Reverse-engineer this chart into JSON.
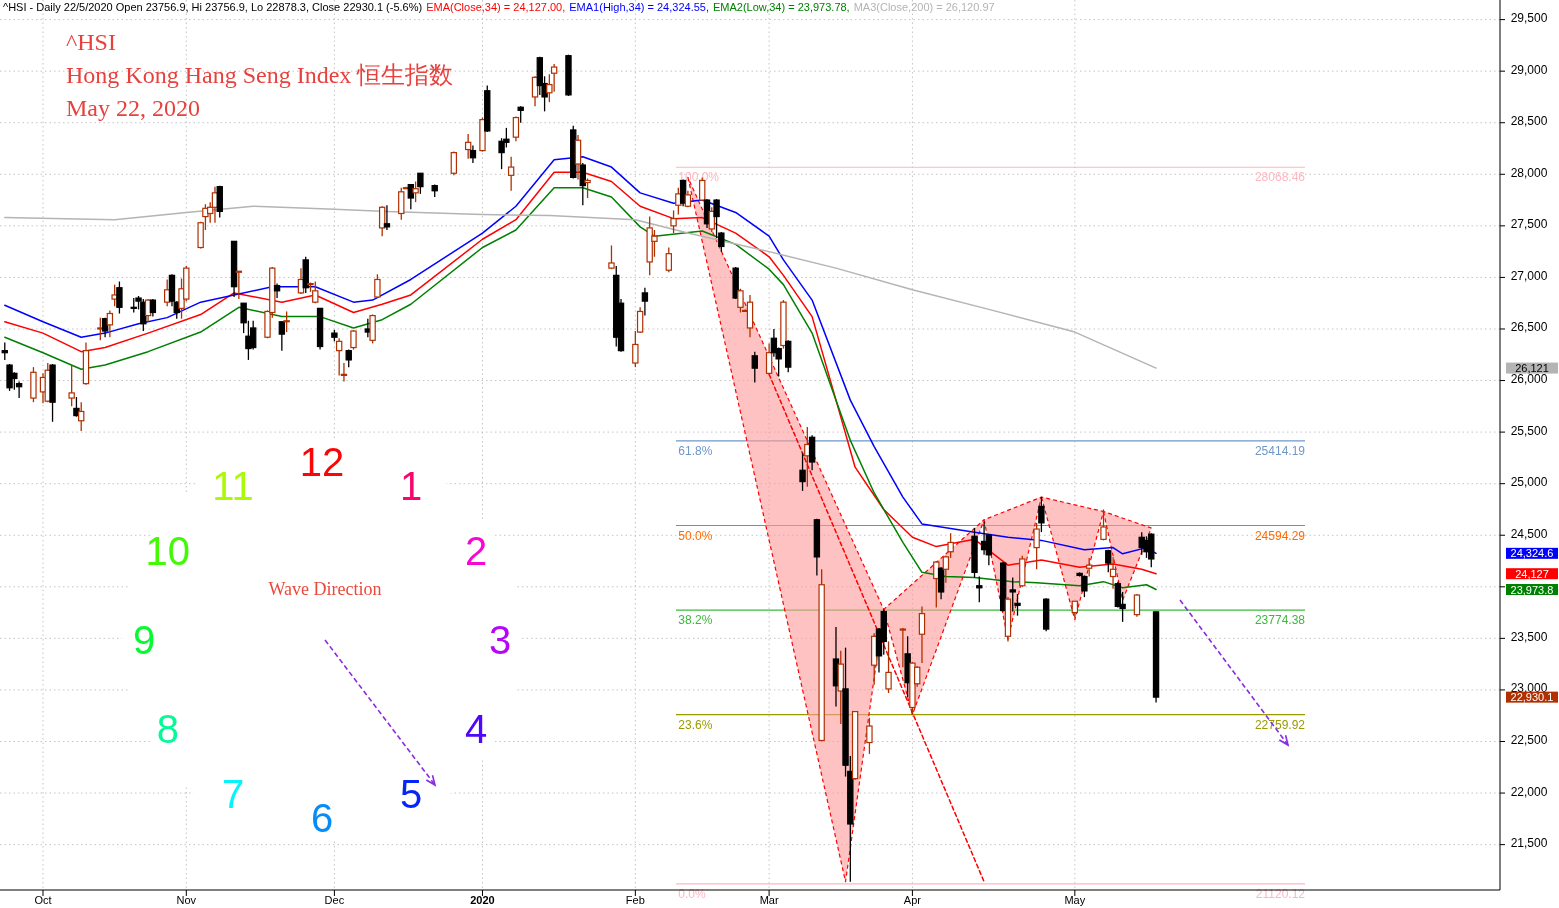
{
  "chart_data": {
    "type": "candlestick",
    "title": "^HSI - Daily 22/5/2020 Open 23756.9, Hi 23756.9, Lo 22878.3, Close 22930.1 (-5.6%)",
    "subtitle": "^HSI\nHong Kong Hang Seng Index  恒生指数\nMay 22, 2020",
    "x": [
      "2019-09-24",
      "2019-09-25",
      "2019-09-26",
      "2019-09-27",
      "2019-09-30",
      "2019-10-02",
      "2019-10-03",
      "2019-10-04",
      "2019-10-08",
      "2019-10-09",
      "2019-10-10",
      "2019-10-11",
      "2019-10-14",
      "2019-10-15",
      "2019-10-16",
      "2019-10-17",
      "2019-10-18",
      "2019-10-21",
      "2019-10-22",
      "2019-10-23",
      "2019-10-24",
      "2019-10-25",
      "2019-10-28",
      "2019-10-29",
      "2019-10-30",
      "2019-10-31",
      "2019-11-01",
      "2019-11-04",
      "2019-11-05",
      "2019-11-06",
      "2019-11-07",
      "2019-11-08",
      "2019-11-11",
      "2019-11-12",
      "2019-11-13",
      "2019-11-14",
      "2019-11-15",
      "2019-11-18",
      "2019-11-19",
      "2019-11-20",
      "2019-11-21",
      "2019-11-22",
      "2019-11-25",
      "2019-11-26",
      "2019-11-27",
      "2019-11-28",
      "2019-11-29",
      "2019-12-02",
      "2019-12-03",
      "2019-12-04",
      "2019-12-05",
      "2019-12-06",
      "2019-12-09",
      "2019-12-10",
      "2019-12-11",
      "2019-12-12",
      "2019-12-13",
      "2019-12-16",
      "2019-12-17",
      "2019-12-18",
      "2019-12-19",
      "2019-12-20",
      "2019-12-23",
      "2019-12-27",
      "2019-12-30",
      "2019-12-31",
      "2020-01-02",
      "2020-01-03",
      "2020-01-06",
      "2020-01-07",
      "2020-01-08",
      "2020-01-09",
      "2020-01-10",
      "2020-01-13",
      "2020-01-14",
      "2020-01-15",
      "2020-01-16",
      "2020-01-17",
      "2020-01-20",
      "2020-01-21",
      "2020-01-22",
      "2020-01-23",
      "2020-01-24",
      "2020-01-29",
      "2020-01-30",
      "2020-01-31",
      "2020-02-03",
      "2020-02-04",
      "2020-02-05",
      "2020-02-06",
      "2020-02-07",
      "2020-02-10",
      "2020-02-11",
      "2020-02-12",
      "2020-02-13",
      "2020-02-14",
      "2020-02-17",
      "2020-02-18",
      "2020-02-19",
      "2020-02-20",
      "2020-02-21",
      "2020-02-24",
      "2020-02-25",
      "2020-02-26",
      "2020-02-27",
      "2020-02-28",
      "2020-03-02",
      "2020-03-03",
      "2020-03-04",
      "2020-03-05",
      "2020-03-06",
      "2020-03-09",
      "2020-03-10",
      "2020-03-11",
      "2020-03-12",
      "2020-03-13",
      "2020-03-16",
      "2020-03-17",
      "2020-03-18",
      "2020-03-19",
      "2020-03-20",
      "2020-03-23",
      "2020-03-24",
      "2020-03-25",
      "2020-03-26",
      "2020-03-27",
      "2020-03-30",
      "2020-03-31",
      "2020-04-01",
      "2020-04-02",
      "2020-04-03",
      "2020-04-06",
      "2020-04-07",
      "2020-04-08",
      "2020-04-09",
      "2020-04-14",
      "2020-04-15",
      "2020-04-16",
      "2020-04-17",
      "2020-04-20",
      "2020-04-21",
      "2020-04-22",
      "2020-04-23",
      "2020-04-24",
      "2020-04-27",
      "2020-04-28",
      "2020-04-29",
      "2020-05-05",
      "2020-05-06",
      "2020-05-07",
      "2020-05-08",
      "2020-05-11",
      "2020-05-12",
      "2020-05-13",
      "2020-05-14",
      "2020-05-15",
      "2020-05-18",
      "2020-05-19",
      "2020-05-20",
      "2020-05-21",
      "2020-05-22"
    ],
    "ohlc": [
      [
        26290,
        26370,
        26200,
        26270
      ],
      [
        26150,
        26160,
        25900,
        25930
      ],
      [
        26070,
        26080,
        25910,
        26020
      ],
      [
        25970,
        25990,
        25830,
        25940
      ],
      [
        25830,
        26130,
        25790,
        26080
      ],
      [
        25890,
        26070,
        25780,
        26030
      ],
      [
        25800,
        26170,
        25790,
        26100
      ],
      [
        26150,
        26160,
        25600,
        25790
      ],
      [
        25830,
        26150,
        25750,
        25880
      ],
      [
        25730,
        25840,
        25650,
        25660
      ],
      [
        25610,
        25790,
        25510,
        25700
      ],
      [
        25970,
        26370,
        25960,
        26290
      ],
      [
        26500,
        26610,
        26390,
        26510
      ],
      [
        26600,
        26610,
        26420,
        26480
      ],
      [
        26540,
        26680,
        26420,
        26650
      ],
      [
        26790,
        26930,
        26720,
        26830
      ],
      [
        26900,
        26960,
        26650,
        26710
      ],
      [
        26710,
        26800,
        26660,
        26700
      ],
      [
        26800,
        26820,
        26690,
        26770
      ],
      [
        26760,
        26790,
        26480,
        26550
      ],
      [
        26630,
        26790,
        26570,
        26780
      ],
      [
        26780,
        26790,
        26620,
        26660
      ],
      [
        26760,
        26980,
        26720,
        26880
      ],
      [
        27020,
        27030,
        26720,
        26770
      ],
      [
        26760,
        26770,
        26600,
        26660
      ],
      [
        26700,
        26990,
        26600,
        26890
      ],
      [
        26790,
        27110,
        26770,
        27090
      ],
      [
        27290,
        27540,
        27280,
        27530
      ],
      [
        27590,
        27710,
        27460,
        27670
      ],
      [
        27620,
        27730,
        27530,
        27680
      ],
      [
        27680,
        27880,
        27530,
        27820
      ],
      [
        27880,
        27890,
        27580,
        27640
      ],
      [
        27350,
        27350,
        26810,
        26910
      ],
      [
        27050,
        27060,
        26790,
        27060
      ],
      [
        26750,
        26750,
        26460,
        26560
      ],
      [
        26430,
        26580,
        26200,
        26310
      ],
      [
        26510,
        26580,
        26300,
        26320
      ],
      [
        26420,
        26680,
        26410,
        26670
      ],
      [
        26660,
        27100,
        26610,
        27090
      ],
      [
        26920,
        26940,
        26800,
        26870
      ],
      [
        26570,
        26570,
        26290,
        26450
      ],
      [
        26570,
        26670,
        26470,
        26580
      ],
      [
        26850,
        27090,
        26840,
        26980
      ],
      [
        27170,
        27200,
        26850,
        26900
      ],
      [
        26930,
        26950,
        26860,
        26940
      ],
      [
        26760,
        26960,
        26750,
        26870
      ],
      [
        26700,
        26700,
        26300,
        26330
      ],
      [
        26460,
        26490,
        26380,
        26420
      ],
      [
        26290,
        26410,
        26050,
        26380
      ],
      [
        26050,
        26170,
        25990,
        26060
      ],
      [
        26290,
        26300,
        26130,
        26200
      ],
      [
        26320,
        26490,
        26300,
        26480
      ],
      [
        26500,
        26600,
        26420,
        26470
      ],
      [
        26390,
        26640,
        26360,
        26630
      ],
      [
        26810,
        27030,
        26800,
        26980
      ],
      [
        27480,
        27690,
        27400,
        27680
      ],
      [
        27520,
        27700,
        27460,
        27490
      ],
      [
        27620,
        27870,
        27560,
        27830
      ],
      [
        27870,
        27880,
        27860,
        27870
      ],
      [
        27900,
        27900,
        27660,
        27770
      ],
      [
        27820,
        27930,
        27730,
        27860
      ],
      [
        28010,
        28010,
        27810,
        27880
      ],
      [
        27890,
        27900,
        27780,
        27840
      ],
      [
        28010,
        28220,
        27990,
        28210
      ],
      [
        28240,
        28390,
        28150,
        28310
      ],
      [
        28230,
        28280,
        28110,
        28160
      ],
      [
        28230,
        28550,
        28220,
        28530
      ],
      [
        28810,
        28860,
        28410,
        28420
      ],
      [
        28320,
        28350,
        28050,
        28210
      ],
      [
        28340,
        28450,
        28260,
        28310
      ],
      [
        27990,
        28170,
        27840,
        28070
      ],
      [
        28360,
        28560,
        28320,
        28550
      ],
      [
        28650,
        28660,
        28500,
        28620
      ],
      [
        28750,
        28950,
        28660,
        28940
      ],
      [
        29130,
        29140,
        28770,
        28860
      ],
      [
        28880,
        28950,
        28610,
        28750
      ],
      [
        28790,
        28970,
        28700,
        28870
      ],
      [
        28980,
        29070,
        28800,
        29040
      ],
      [
        29150,
        29160,
        28760,
        28770
      ],
      [
        28430,
        28470,
        27960,
        27970
      ],
      [
        28100,
        28380,
        27950,
        28330
      ],
      [
        28090,
        28110,
        27700,
        27890
      ],
      [
        27920,
        27960,
        27770,
        27940
      ],
      [
        27090,
        27310,
        27080,
        27140
      ],
      [
        27020,
        27110,
        26330,
        26420
      ],
      [
        26750,
        26790,
        26280,
        26290
      ],
      [
        26170,
        26480,
        26130,
        26350
      ],
      [
        26470,
        26710,
        26460,
        26670
      ],
      [
        26850,
        26900,
        26630,
        26770
      ],
      [
        27150,
        27590,
        27020,
        27480
      ],
      [
        27350,
        27460,
        27200,
        27400
      ],
      [
        27070,
        27290,
        27050,
        27230
      ],
      [
        27500,
        27650,
        27430,
        27570
      ],
      [
        27700,
        27870,
        27610,
        27810
      ],
      [
        27940,
        27950,
        27690,
        27720
      ],
      [
        27690,
        27840,
        27680,
        27800
      ],
      [
        27750,
        27970,
        27740,
        27940
      ],
      [
        27750,
        27760,
        27480,
        27520
      ],
      [
        27470,
        27680,
        27440,
        27640
      ],
      [
        27750,
        27760,
        27380,
        27590
      ],
      [
        27430,
        27440,
        27250,
        27300
      ],
      [
        27090,
        27100,
        26790,
        26800
      ],
      [
        26710,
        26890,
        26660,
        26870
      ],
      [
        26680,
        26690,
        26670,
        26680
      ],
      [
        26510,
        26830,
        26420,
        26760
      ],
      [
        26240,
        26280,
        25980,
        26120
      ],
      [
        26070,
        26360,
        26060,
        26270
      ],
      [
        26410,
        26500,
        26230,
        26270
      ],
      [
        26310,
        26320,
        26040,
        26210
      ],
      [
        26340,
        26780,
        26310,
        26760
      ],
      [
        26380,
        26390,
        26080,
        26130
      ],
      [
        25130,
        25300,
        24930,
        25020
      ],
      [
        25270,
        25550,
        24970,
        25380
      ],
      [
        25450,
        25470,
        25130,
        25210
      ],
      [
        24650,
        24660,
        24110,
        24290
      ],
      [
        22510,
        24170,
        22500,
        24020
      ],
      [
        23300,
        23610,
        22840,
        23040
      ],
      [
        22990,
        23380,
        22670,
        23250
      ],
      [
        23010,
        23410,
        22160,
        22270
      ],
      [
        22210,
        22360,
        21140,
        21700
      ],
      [
        22140,
        22790,
        22130,
        22790
      ],
      [
        22490,
        22730,
        22380,
        22650
      ],
      [
        23240,
        23550,
        23050,
        23520
      ],
      [
        23590,
        23600,
        23170,
        23330
      ],
      [
        23760,
        23780,
        23340,
        23470
      ],
      [
        23010,
        23470,
        22970,
        23170
      ],
      [
        23590,
        23600,
        23220,
        23590
      ],
      [
        23350,
        23520,
        22930,
        23070
      ],
      [
        22830,
        23270,
        22760,
        23260
      ],
      [
        23060,
        23230,
        23030,
        23220
      ],
      [
        23540,
        23810,
        23260,
        23740
      ],
      [
        24080,
        24250,
        23800,
        24240
      ],
      [
        24180,
        24190,
        23880,
        23950
      ],
      [
        24170,
        24300,
        24040,
        24290
      ],
      [
        24340,
        24520,
        24280,
        24430
      ],
      [
        24490,
        24570,
        24090,
        24140
      ],
      [
        24010,
        24100,
        23850,
        23990
      ],
      [
        24440,
        24630,
        24310,
        24360
      ],
      [
        24500,
        24510,
        24210,
        24310
      ],
      [
        24230,
        24240,
        23760,
        23770
      ],
      [
        23520,
        23900,
        23470,
        23880
      ],
      [
        23970,
        24090,
        23760,
        23950
      ],
      [
        23840,
        23930,
        23720,
        23820
      ],
      [
        24010,
        24300,
        24000,
        24270
      ],
      [
        24380,
        24620,
        24170,
        24560
      ],
      [
        24780,
        24870,
        24530,
        24620
      ],
      [
        23880,
        23890,
        23570,
        23590
      ],
      [
        23750,
        23860,
        23700,
        23860
      ],
      [
        24130,
        24140,
        24100,
        24110
      ],
      [
        24100,
        24110,
        23900,
        23960
      ],
      [
        24180,
        24280,
        24100,
        24210
      ],
      [
        24460,
        24750,
        24450,
        24580
      ],
      [
        24350,
        24360,
        24140,
        24230
      ],
      [
        24100,
        24290,
        23980,
        24170
      ],
      [
        24030,
        24050,
        23800,
        23810
      ],
      [
        23830,
        23950,
        23660,
        23790
      ],
      [
        23730,
        23930,
        23710,
        23920
      ],
      [
        24480,
        24530,
        24310,
        24380
      ],
      [
        24450,
        24490,
        24280,
        24340
      ],
      [
        24510,
        24520,
        24190,
        24270
      ],
      [
        23756.9,
        23756.9,
        22878.3,
        22930.1
      ]
    ],
    "series": [
      {
        "name": "EMA(Close,34) = 24,127.00,",
        "type": "line",
        "color": "#ff0000",
        "x": [
          "2019-09-24",
          "2019-10-02",
          "2019-10-10",
          "2019-10-15",
          "2019-10-24",
          "2019-11-04",
          "2019-11-11",
          "2019-11-21",
          "2019-11-28",
          "2019-12-06",
          "2019-12-12",
          "2019-12-18",
          "2020-01-02",
          "2020-01-09",
          "2020-01-17",
          "2020-01-23",
          "2020-01-29",
          "2020-02-04",
          "2020-02-11",
          "2020-02-17",
          "2020-02-24",
          "2020-03-02",
          "2020-03-05",
          "2020-03-11",
          "2020-03-16",
          "2020-03-20",
          "2020-03-26",
          "2020-04-01",
          "2020-04-06",
          "2020-04-14",
          "2020-04-21",
          "2020-04-28",
          "2020-05-06",
          "2020-05-13",
          "2020-05-19",
          "2020-05-22"
        ],
        "values": [
          26570,
          26460,
          26280,
          26320,
          26460,
          26640,
          26850,
          26760,
          26830,
          26660,
          26740,
          26830,
          27370,
          27560,
          28020,
          28020,
          27930,
          27690,
          27570,
          27580,
          27430,
          27200,
          27020,
          26620,
          25810,
          25160,
          24750,
          24480,
          24390,
          24460,
          24210,
          24260,
          24190,
          24220,
          24170,
          24127.0
        ]
      },
      {
        "name": "EMA1(High,34) = 24,324.55,",
        "type": "line",
        "color": "#0000ff",
        "x": [
          "2019-09-24",
          "2019-10-02",
          "2019-10-10",
          "2019-10-15",
          "2019-10-22",
          "2019-10-28",
          "2019-11-04",
          "2019-11-19",
          "2019-11-28",
          "2019-12-06",
          "2019-12-10",
          "2019-12-18",
          "2020-01-02",
          "2020-01-09",
          "2020-01-17",
          "2020-01-23",
          "2020-01-29",
          "2020-02-04",
          "2020-02-11",
          "2020-02-17",
          "2020-02-24",
          "2020-03-02",
          "2020-03-05",
          "2020-03-11",
          "2020-03-19",
          "2020-03-24",
          "2020-03-30",
          "2020-04-03",
          "2020-04-14",
          "2020-04-21",
          "2020-04-28",
          "2020-05-07",
          "2020-05-13",
          "2020-05-15",
          "2020-05-20",
          "2020-05-22"
        ],
        "values": [
          26730,
          26570,
          26420,
          26460,
          26550,
          26610,
          26760,
          26910,
          26910,
          26760,
          26780,
          26980,
          27430,
          27690,
          28140,
          28170,
          28070,
          27820,
          27720,
          27750,
          27630,
          27400,
          27170,
          26780,
          25810,
          25360,
          24870,
          24610,
          24530,
          24480,
          24450,
          24360,
          24380,
          24320,
          24380,
          24324.55
        ]
      },
      {
        "name": "EMA2(Low,34) = 23,973.78,",
        "type": "line",
        "color": "#008000",
        "x": [
          "2019-09-24",
          "2019-10-02",
          "2019-10-10",
          "2019-10-15",
          "2019-10-24",
          "2019-11-04",
          "2019-11-12",
          "2019-11-21",
          "2019-11-29",
          "2019-12-06",
          "2019-12-12",
          "2019-12-18",
          "2020-01-02",
          "2020-01-09",
          "2020-01-17",
          "2020-01-23",
          "2020-01-29",
          "2020-02-04",
          "2020-02-07",
          "2020-02-17",
          "2020-02-24",
          "2020-03-02",
          "2020-03-05",
          "2020-03-11",
          "2020-03-16",
          "2020-03-19",
          "2020-03-24",
          "2020-03-30",
          "2020-04-03",
          "2020-04-08",
          "2020-04-14",
          "2020-04-22",
          "2020-04-27",
          "2020-05-06",
          "2020-05-11",
          "2020-05-15",
          "2020-05-20",
          "2020-05-22"
        ],
        "values": [
          26420,
          26270,
          26110,
          26150,
          26280,
          26470,
          26710,
          26620,
          26620,
          26510,
          26590,
          26740,
          27290,
          27460,
          27870,
          27870,
          27780,
          27490,
          27400,
          27450,
          27320,
          27080,
          26930,
          26460,
          25810,
          25420,
          24910,
          24430,
          24140,
          24100,
          24090,
          24050,
          24040,
          24010,
          24050,
          23990,
          24020,
          23973.78
        ]
      },
      {
        "name": "MA3(Close,200) = 26,120.97",
        "type": "line",
        "color": "#b4b4b4",
        "x": [
          "2019-09-24",
          "2019-10-17",
          "2019-11-01",
          "2019-11-15",
          "2019-12-02",
          "2019-12-13",
          "2020-01-02",
          "2020-01-16",
          "2020-02-03",
          "2020-02-14",
          "2020-03-02",
          "2020-03-16",
          "2020-04-01",
          "2020-04-17",
          "2020-05-05",
          "2020-05-22"
        ],
        "values": [
          27580,
          27560,
          27630,
          27690,
          27660,
          27640,
          27610,
          27600,
          27560,
          27430,
          27250,
          27090,
          26880,
          26690,
          26470,
          26120.97
        ]
      },
      {
        "type": "area",
        "color": "#ff9999",
        "line_style": "dashed",
        "x": [
          "2020-02-14",
          "2020-03-18",
          "2020-03-26"
        ],
        "values": [
          27970,
          21140,
          23780
        ]
      },
      {
        "type": "area",
        "color": "#ff9999",
        "line_style": "dashed",
        "x": [
          "2020-03-26",
          "2020-04-01",
          "2020-04-16"
        ],
        "values": [
          23780,
          22760,
          24650
        ]
      },
      {
        "type": "area",
        "color": "#ff9999",
        "line_style": "dashed",
        "x": [
          "2020-04-16",
          "2020-04-21",
          "2020-04-28"
        ],
        "values": [
          24650,
          23490,
          24870
        ]
      },
      {
        "type": "area",
        "color": "#ff9999",
        "line_style": "dashed",
        "x": [
          "2020-04-28",
          "2020-05-05",
          "2020-05-11"
        ],
        "values": [
          24870,
          23680,
          24730
        ]
      },
      {
        "type": "area",
        "color": "#ff9999",
        "line_style": "dashed",
        "x": [
          "2020-05-11",
          "2020-05-15",
          "2020-05-21"
        ],
        "values": [
          24730,
          23870,
          24570
        ]
      },
      {
        "type": "line",
        "color": "#ff0000",
        "line_style": "dashed",
        "x": [
          "2020-03-02",
          "2020-04-16"
        ],
        "values": [
          26060,
          21140
        ]
      }
    ],
    "ref_lines": [
      {
        "axis": "y",
        "value": 28068.46,
        "label": "28068.46",
        "color": "#ffb6c1"
      },
      {
        "axis": "y",
        "value": 25414.19,
        "label": "25414.19",
        "color": "#6f97c8"
      },
      {
        "axis": "y",
        "value": 24594.29,
        "label": "24594.29",
        "color": "#ff6a00"
      },
      {
        "axis": "y",
        "value": 23774.38,
        "label": "23774.38",
        "color": "#3cb83c"
      },
      {
        "axis": "y",
        "value": 22759.92,
        "label": "22759.92",
        "color": "#9a9a00"
      },
      {
        "axis": "y",
        "value": 21120.12,
        "label": "21120.12",
        "color": "#ffb6c1"
      }
    ],
    "annotations": [
      "Wave Direction",
      "12",
      "1",
      "2",
      "3",
      "4",
      "5",
      "6",
      "7",
      "8",
      "9",
      "10",
      "11",
      "24,127",
      "24,324.6",
      "23,973.8",
      "26,121",
      "22,930.1",
      {
        "text": "100.0%",
        "x": "2020-02-12",
        "y": 28068.46
      },
      {
        "text": "61.8%",
        "x": "2020-02-12",
        "y": 25414.19
      },
      {
        "text": "50.0%",
        "x": "2020-02-12",
        "y": 24594.29
      },
      {
        "text": "38.2%",
        "x": "2020-02-12",
        "y": 23774.38
      },
      {
        "text": "23.6%",
        "x": "2020-02-12",
        "y": 22759.92
      },
      {
        "text": "0.0%",
        "x": "2020-02-12",
        "y": 21120.12
      }
    ],
    "xlim": [
      "2019-09-23",
      "2020-08-02"
    ],
    "ylim": [
      21060,
      29690
    ],
    "xticks": [
      {
        "value": "2019-10-02",
        "label": "Oct"
      },
      {
        "value": "2019-11-01",
        "label": "Nov"
      },
      {
        "value": "2019-12-02",
        "label": "Dec"
      },
      {
        "value": "2020-01-02",
        "label": "2020"
      },
      {
        "value": "2020-02-03",
        "label": "Feb"
      },
      {
        "value": "2020-03-02",
        "label": "Mar"
      },
      {
        "value": "2020-04-01",
        "label": "Apr"
      },
      {
        "value": "2020-05-05",
        "label": "May"
      }
    ],
    "yticks": [
      {
        "value": 21500,
        "label": "21,500"
      },
      {
        "value": 22000,
        "label": "22,000"
      },
      {
        "value": 22500,
        "label": "22,500"
      },
      {
        "value": 23000,
        "label": "23,000"
      },
      {
        "value": 23500,
        "label": "23,500"
      },
      {
        "value": 24000,
        "label": null
      },
      {
        "value": 24500,
        "label": "24,500"
      },
      {
        "value": 25000,
        "label": "25,000"
      },
      {
        "value": 25500,
        "label": "25,500"
      },
      {
        "value": 26000,
        "label": "26,000"
      },
      {
        "value": 26500,
        "label": "26,500"
      },
      {
        "value": 27000,
        "label": "27,000"
      },
      {
        "value": 27500,
        "label": "27,500"
      },
      {
        "value": 28000,
        "label": "28,000"
      },
      {
        "value": 28500,
        "label": "28,500"
      },
      {
        "value": 29000,
        "label": "29,000"
      },
      {
        "value": 29500,
        "label": "29,500"
      }
    ],
    "grid": true
  }
}
